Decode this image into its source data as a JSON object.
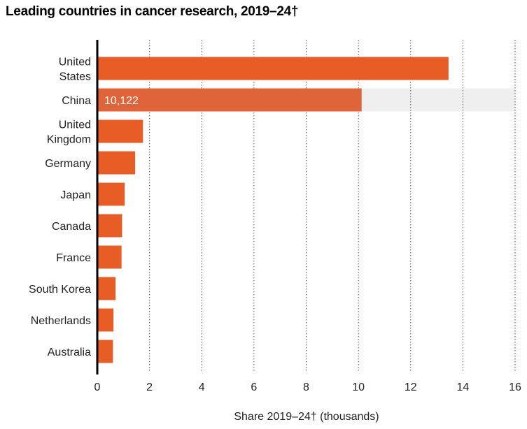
{
  "chart_data": {
    "type": "bar",
    "orientation": "horizontal",
    "title": "Leading countries in cancer research, 2019–24†",
    "xlabel": "Share 2019–24† (thousands)",
    "ylabel": "",
    "xlim": [
      0,
      16
    ],
    "xticks": [
      0,
      2,
      4,
      6,
      8,
      10,
      12,
      14,
      16
    ],
    "grid": "vertical dotted",
    "categories": [
      [
        "United",
        "States"
      ],
      [
        "China"
      ],
      [
        "United",
        "Kingdom"
      ],
      [
        "Germany"
      ],
      [
        "Japan"
      ],
      [
        "Canada"
      ],
      [
        "France"
      ],
      [
        "South Korea"
      ],
      [
        "Netherlands"
      ],
      [
        "Australia"
      ]
    ],
    "values": [
      13.45,
      10.122,
      1.75,
      1.45,
      1.05,
      0.95,
      0.93,
      0.7,
      0.62,
      0.6
    ],
    "highlight_index": 1,
    "data_labels": [
      {
        "index": 1,
        "text": "10,122"
      }
    ],
    "colors": {
      "bar": "#e85d26",
      "highlight_bar": "#e0643a",
      "highlight_band": "#efefef",
      "grid": "#555555",
      "axis": "#000000"
    }
  }
}
